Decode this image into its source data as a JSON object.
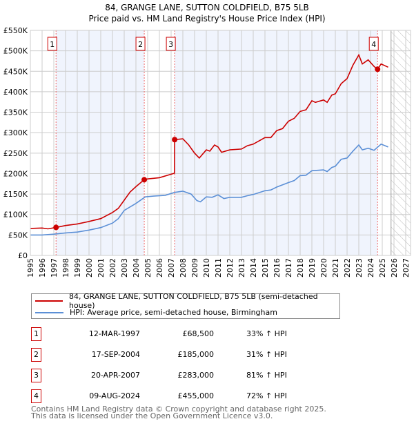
{
  "header": {
    "title": "84, GRANGE LANE, SUTTON COLDFIELD, B75 5LB",
    "subtitle": "Price paid vs. HM Land Registry's House Price Index (HPI)"
  },
  "chart_data": {
    "type": "line",
    "title": "84, GRANGE LANE, SUTTON COLDFIELD, B75 5LB",
    "subtitle": "Price paid vs. HM Land Registry's House Price Index (HPI)",
    "xlim": [
      1995,
      2027
    ],
    "ylim": [
      0,
      550000
    ],
    "x_ticks": [
      "1995",
      "1996",
      "1997",
      "1998",
      "1999",
      "2000",
      "2001",
      "2002",
      "2003",
      "2004",
      "2005",
      "2006",
      "2007",
      "2008",
      "2009",
      "2010",
      "2011",
      "2012",
      "2013",
      "2014",
      "2015",
      "2016",
      "2017",
      "2018",
      "2019",
      "2020",
      "2021",
      "2022",
      "2023",
      "2024",
      "2025",
      "2026",
      "2027"
    ],
    "y_ticks": [
      {
        "v": 0,
        "label": "£0"
      },
      {
        "v": 50000,
        "label": "£50K"
      },
      {
        "v": 100000,
        "label": "£100K"
      },
      {
        "v": 150000,
        "label": "£150K"
      },
      {
        "v": 200000,
        "label": "£200K"
      },
      {
        "v": 250000,
        "label": "£250K"
      },
      {
        "v": 300000,
        "label": "£300K"
      },
      {
        "v": 350000,
        "label": "£350K"
      },
      {
        "v": 400000,
        "label": "£400K"
      },
      {
        "v": 450000,
        "label": "£450K"
      },
      {
        "v": 500000,
        "label": "£500K"
      },
      {
        "v": 550000,
        "label": "£550K"
      }
    ],
    "grid": true,
    "forecast_start": 2025.75,
    "series": [
      {
        "name": "84, GRANGE LANE, SUTTON COLDFIELD, B75 5LB (semi-detached house)",
        "color": "#cc0000",
        "points": [
          [
            1995,
            66000
          ],
          [
            1996,
            67000
          ],
          [
            1996.5,
            65000
          ],
          [
            1997.2,
            68500
          ],
          [
            1998,
            73000
          ],
          [
            1999,
            77000
          ],
          [
            2000,
            83000
          ],
          [
            2001,
            90000
          ],
          [
            2002,
            105000
          ],
          [
            2002.5,
            115000
          ],
          [
            2003,
            135000
          ],
          [
            2003.5,
            155000
          ],
          [
            2004,
            168000
          ],
          [
            2004.71,
            185000
          ],
          [
            2005,
            187000
          ],
          [
            2006,
            190000
          ],
          [
            2007.29,
            201000
          ],
          [
            2007.3,
            283000
          ],
          [
            2008,
            285000
          ],
          [
            2008.5,
            270000
          ],
          [
            2009,
            250000
          ],
          [
            2009.4,
            238000
          ],
          [
            2010,
            258000
          ],
          [
            2010.3,
            255000
          ],
          [
            2010.7,
            270000
          ],
          [
            2011,
            265000
          ],
          [
            2011.3,
            252000
          ],
          [
            2012,
            258000
          ],
          [
            2013,
            260000
          ],
          [
            2013.5,
            268000
          ],
          [
            2014,
            272000
          ],
          [
            2015,
            288000
          ],
          [
            2015.5,
            288000
          ],
          [
            2016,
            305000
          ],
          [
            2016.5,
            310000
          ],
          [
            2017,
            328000
          ],
          [
            2017.5,
            335000
          ],
          [
            2018,
            352000
          ],
          [
            2018.5,
            356000
          ],
          [
            2019,
            378000
          ],
          [
            2019.3,
            374000
          ],
          [
            2020,
            380000
          ],
          [
            2020.3,
            374000
          ],
          [
            2020.7,
            392000
          ],
          [
            2021,
            395000
          ],
          [
            2021.5,
            420000
          ],
          [
            2022,
            432000
          ],
          [
            2022.5,
            465000
          ],
          [
            2023,
            490000
          ],
          [
            2023.3,
            468000
          ],
          [
            2023.8,
            478000
          ],
          [
            2024.3,
            462000
          ],
          [
            2024.6,
            455000
          ],
          [
            2024.9,
            468000
          ],
          [
            2025.5,
            460000
          ]
        ]
      },
      {
        "name": "HPI: Average price, semi-detached house, Birmingham",
        "color": "#5b8fd6",
        "points": [
          [
            1995,
            50000
          ],
          [
            1996,
            50000
          ],
          [
            1997,
            52000
          ],
          [
            1998,
            55000
          ],
          [
            1999,
            57000
          ],
          [
            2000,
            62000
          ],
          [
            2001,
            68000
          ],
          [
            2002,
            79000
          ],
          [
            2002.5,
            90000
          ],
          [
            2003,
            110000
          ],
          [
            2004,
            127000
          ],
          [
            2004.8,
            143000
          ],
          [
            2005.5,
            145000
          ],
          [
            2006.5,
            147000
          ],
          [
            2007.3,
            154000
          ],
          [
            2008,
            157000
          ],
          [
            2008.7,
            150000
          ],
          [
            2009.2,
            134000
          ],
          [
            2009.5,
            131000
          ],
          [
            2010,
            143000
          ],
          [
            2010.5,
            142000
          ],
          [
            2011,
            148000
          ],
          [
            2011.5,
            139000
          ],
          [
            2012,
            142000
          ],
          [
            2013,
            142000
          ],
          [
            2013.5,
            146000
          ],
          [
            2014,
            149000
          ],
          [
            2015,
            158000
          ],
          [
            2015.5,
            160000
          ],
          [
            2016,
            167000
          ],
          [
            2017,
            178000
          ],
          [
            2017.5,
            183000
          ],
          [
            2018,
            195000
          ],
          [
            2018.5,
            196000
          ],
          [
            2019,
            207000
          ],
          [
            2020,
            209000
          ],
          [
            2020.3,
            205000
          ],
          [
            2020.7,
            215000
          ],
          [
            2021,
            218000
          ],
          [
            2021.5,
            235000
          ],
          [
            2022,
            238000
          ],
          [
            2022.5,
            255000
          ],
          [
            2023,
            270000
          ],
          [
            2023.3,
            258000
          ],
          [
            2023.8,
            262000
          ],
          [
            2024.3,
            257000
          ],
          [
            2024.9,
            272000
          ],
          [
            2025.5,
            265000
          ]
        ]
      }
    ],
    "sales": [
      {
        "label": "1",
        "x": 1997.19,
        "value": 68500
      },
      {
        "label": "2",
        "x": 2004.71,
        "value": 185000
      },
      {
        "label": "3",
        "x": 2007.3,
        "value": 283000
      },
      {
        "label": "4",
        "x": 2024.6,
        "value": 455000
      }
    ],
    "legend": "below"
  },
  "legend": {
    "items": [
      {
        "label": "84, GRANGE LANE, SUTTON COLDFIELD, B75 5LB (semi-detached house)",
        "color": "#cc0000"
      },
      {
        "label": "HPI: Average price, semi-detached house, Birmingham",
        "color": "#5b8fd6"
      }
    ]
  },
  "transactions": [
    {
      "num": "1",
      "date": "12-MAR-1997",
      "price": "£68,500",
      "hpi": "33% ↑ HPI"
    },
    {
      "num": "2",
      "date": "17-SEP-2004",
      "price": "£185,000",
      "hpi": "31% ↑ HPI"
    },
    {
      "num": "3",
      "date": "20-APR-2007",
      "price": "£283,000",
      "hpi": "81% ↑ HPI"
    },
    {
      "num": "4",
      "date": "09-AUG-2024",
      "price": "£455,000",
      "hpi": "72% ↑ HPI"
    }
  ],
  "footer": {
    "line1": "Contains HM Land Registry data © Crown copyright and database right 2025.",
    "line2": "This data is licensed under the Open Government Licence v3.0."
  }
}
